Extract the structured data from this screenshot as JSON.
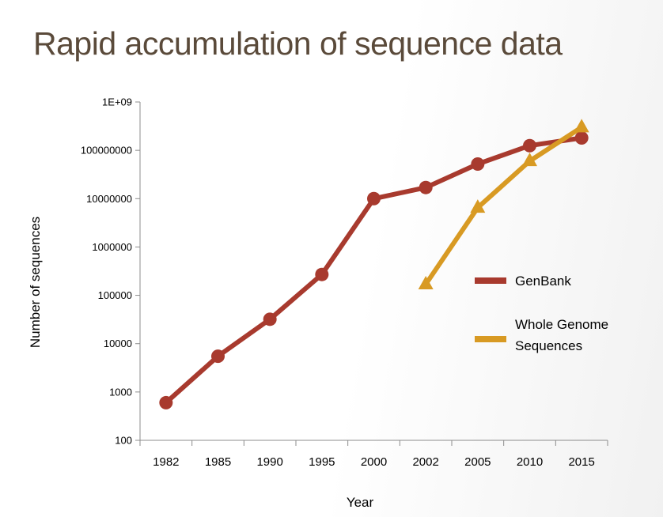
{
  "slide": {
    "title": "Rapid accumulation of sequence data"
  },
  "chart_data": {
    "type": "line",
    "yscale": "log",
    "categories": [
      "1982",
      "1985",
      "1990",
      "1995",
      "2000",
      "2002",
      "2005",
      "2010",
      "2015"
    ],
    "xlabel": "Year",
    "ylabel": "Number of sequences",
    "ylim": [
      100,
      1000000000
    ],
    "yticks": [
      {
        "value": 100,
        "label": "100"
      },
      {
        "value": 1000,
        "label": "1000"
      },
      {
        "value": 10000,
        "label": "10000"
      },
      {
        "value": 100000,
        "label": "100000"
      },
      {
        "value": 1000000,
        "label": "1000000"
      },
      {
        "value": 10000000,
        "label": "10000000"
      },
      {
        "value": 100000000,
        "label": "100000000"
      },
      {
        "value": 1000000000,
        "label": "1E+09"
      }
    ],
    "grid": false,
    "legend": "right",
    "series": [
      {
        "name": "GenBank",
        "color": "#a83a2e",
        "marker": "circle",
        "values": [
          600,
          5500,
          32000,
          270000,
          10000000,
          17000000,
          52000000,
          125000000,
          180000000
        ]
      },
      {
        "name": "Whole Genome Sequences",
        "legend_lines": [
          "Whole Genome",
          "Sequences"
        ],
        "color": "#d89a23",
        "marker": "triangle",
        "values": [
          null,
          null,
          null,
          null,
          null,
          170000,
          6500000,
          60000000,
          300000000
        ]
      }
    ]
  }
}
